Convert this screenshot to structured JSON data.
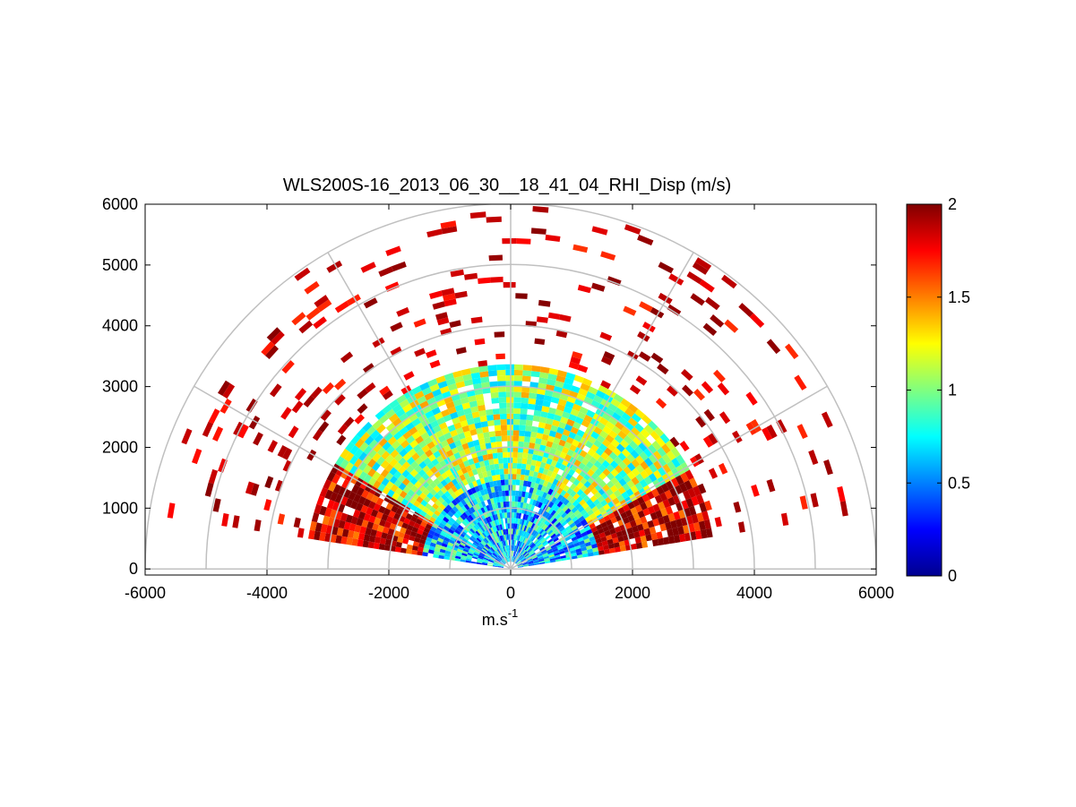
{
  "chart_data": {
    "type": "heatmap",
    "title": "WLS200S-16_2013_06_30__18_41_04_RHI_Disp (m/s)",
    "xlabel": "m.s",
    "xlabel_superscript": "-1",
    "ylabel": "",
    "xlim": [
      -6000,
      6000
    ],
    "ylim": [
      -100,
      6000
    ],
    "xticks": [
      -6000,
      -4000,
      -2000,
      0,
      2000,
      4000,
      6000
    ],
    "yticks": [
      0,
      1000,
      2000,
      3000,
      4000,
      5000,
      6000
    ],
    "grid": "polar",
    "polar_range_rings": [
      1000,
      2000,
      3000,
      4000,
      5000,
      6000
    ],
    "polar_spokes_deg": [
      0,
      30,
      60,
      90,
      120,
      150,
      180
    ],
    "scan_elevation_range_deg": [
      9,
      171
    ],
    "colorbar": {
      "colormap": "jet",
      "min": 0,
      "max": 2,
      "ticks": [
        0,
        0.5,
        1,
        1.5,
        2
      ],
      "tick_labels": [
        "0",
        "0.5",
        "1",
        "1.5",
        "2"
      ],
      "placement": "right"
    },
    "regions": [
      {
        "range_m": [
          0,
          1500
        ],
        "elevation_deg": [
          9,
          171
        ],
        "typical_value": 0.65
      },
      {
        "range_m": [
          1500,
          3400
        ],
        "elevation_deg": [
          30,
          150
        ],
        "typical_value": 1.05
      },
      {
        "range_m": [
          1500,
          3400
        ],
        "elevation_deg": [
          9,
          30
        ],
        "typical_value": 1.9
      },
      {
        "range_m": [
          1500,
          3400
        ],
        "elevation_deg": [
          150,
          171
        ],
        "typical_value": 1.9
      },
      {
        "range_m": [
          3400,
          6000
        ],
        "elevation_deg": [
          9,
          171
        ],
        "typical_value": 2.0,
        "coverage": "sparse"
      }
    ]
  }
}
